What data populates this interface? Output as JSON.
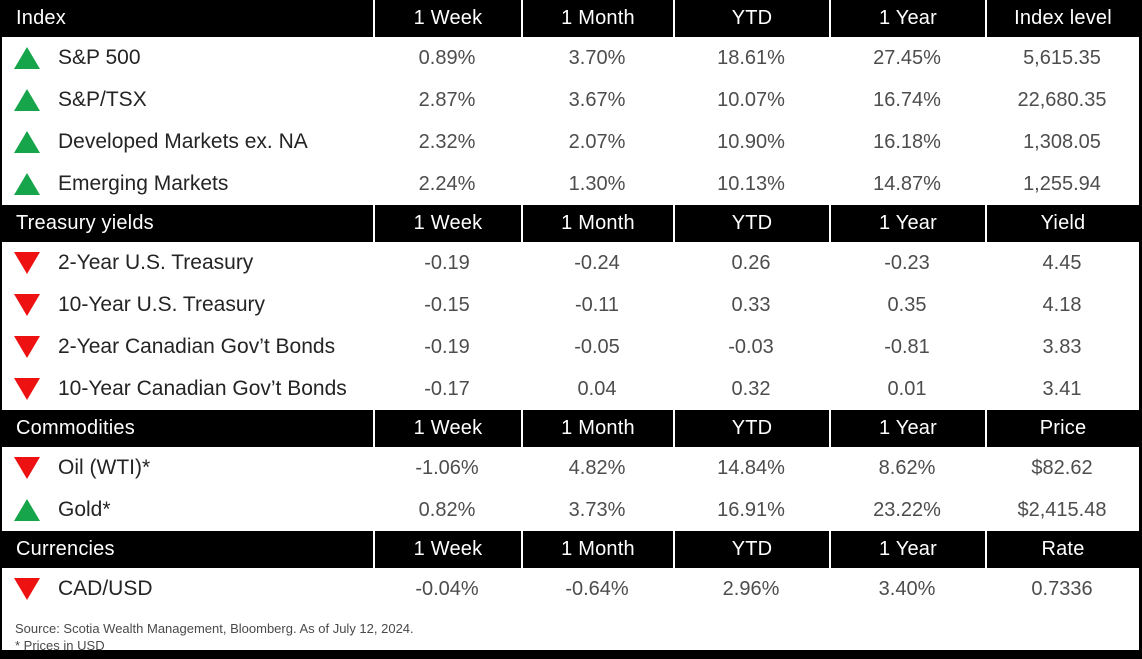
{
  "table": {
    "period_columns": [
      "1 Week",
      "1 Month",
      "YTD",
      "1 Year"
    ],
    "sections": [
      {
        "title": "Index",
        "value_column": "Index level",
        "rows": [
          {
            "direction": "up",
            "name": "S&P 500",
            "cells": [
              "0.89%",
              "3.70%",
              "18.61%",
              "27.45%",
              "5,615.35"
            ]
          },
          {
            "direction": "up",
            "name": "S&P/TSX",
            "cells": [
              "2.87%",
              "3.67%",
              "10.07%",
              "16.74%",
              "22,680.35"
            ]
          },
          {
            "direction": "up",
            "name": "Developed Markets ex. NA",
            "cells": [
              "2.32%",
              "2.07%",
              "10.90%",
              "16.18%",
              "1,308.05"
            ]
          },
          {
            "direction": "up",
            "name": "Emerging Markets",
            "cells": [
              "2.24%",
              "1.30%",
              "10.13%",
              "14.87%",
              "1,255.94"
            ]
          }
        ]
      },
      {
        "title": "Treasury yields",
        "value_column": "Yield",
        "rows": [
          {
            "direction": "down",
            "name": "2-Year U.S. Treasury",
            "cells": [
              "-0.19",
              "-0.24",
              "0.26",
              "-0.23",
              "4.45"
            ]
          },
          {
            "direction": "down",
            "name": "10-Year U.S. Treasury",
            "cells": [
              "-0.15",
              "-0.11",
              "0.33",
              "0.35",
              "4.18"
            ]
          },
          {
            "direction": "down",
            "name": "2-Year Canadian Gov’t Bonds",
            "cells": [
              "-0.19",
              "-0.05",
              "-0.03",
              "-0.81",
              "3.83"
            ]
          },
          {
            "direction": "down",
            "name": "10-Year Canadian Gov’t Bonds",
            "cells": [
              "-0.17",
              "0.04",
              "0.32",
              "0.01",
              "3.41"
            ]
          }
        ]
      },
      {
        "title": "Commodities",
        "value_column": "Price",
        "rows": [
          {
            "direction": "down",
            "name": "Oil (WTI)*",
            "cells": [
              "-1.06%",
              "4.82%",
              "14.84%",
              "8.62%",
              "$82.62"
            ]
          },
          {
            "direction": "up",
            "name": "Gold*",
            "cells": [
              "0.82%",
              "3.73%",
              "16.91%",
              "23.22%",
              "$2,415.48"
            ]
          }
        ]
      },
      {
        "title": "Currencies",
        "value_column": "Rate",
        "rows": [
          {
            "direction": "down",
            "name": "CAD/USD",
            "cells": [
              "-0.04%",
              "-0.64%",
              "2.96%",
              "3.40%",
              "0.7336"
            ]
          }
        ]
      }
    ]
  },
  "footer": {
    "source_line": "Source: Scotia Wealth Management, Bloomberg. As of July 12, 2024.",
    "note_line": "* Prices in USD"
  },
  "colors": {
    "up_arrow": "#16a54b",
    "down_arrow": "#ee1111",
    "header_bg": "#000000",
    "header_text": "#ffffff"
  }
}
